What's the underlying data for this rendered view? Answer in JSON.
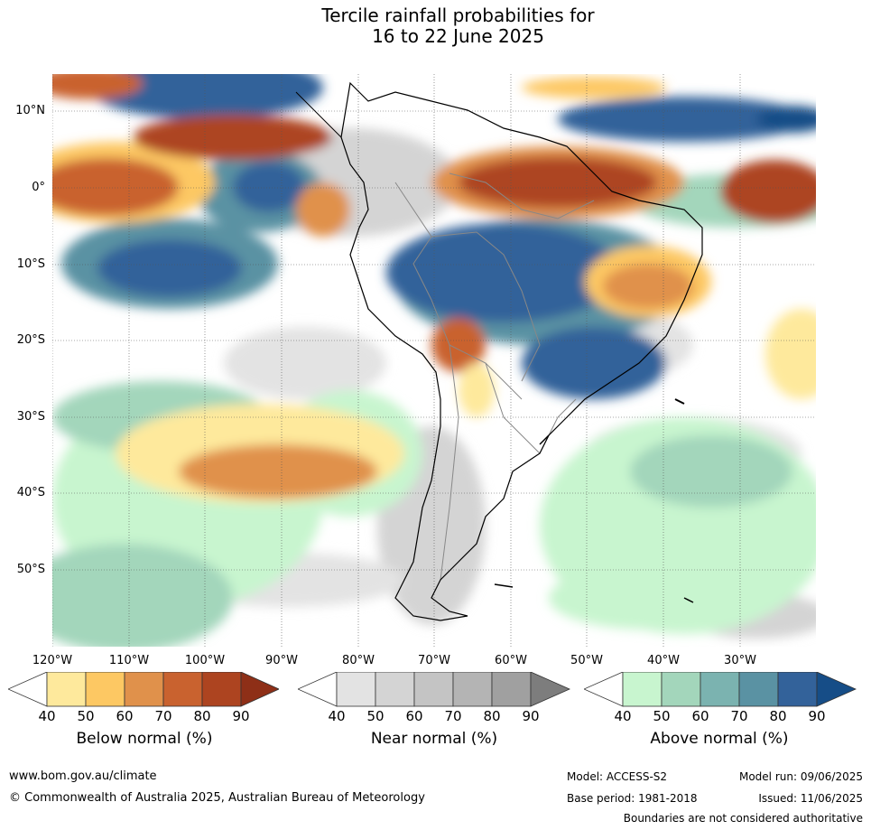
{
  "title": {
    "line1": "Tercile rainfall probabilities for",
    "line2": "16 to 22 June 2025"
  },
  "map": {
    "latitude_labels": [
      "10°N",
      "0°",
      "10°S",
      "20°S",
      "30°S",
      "40°S",
      "50°S"
    ],
    "longitude_labels": [
      "120°W",
      "110°W",
      "100°W",
      "90°W",
      "80°W",
      "70°W",
      "60°W",
      "50°W",
      "40°W",
      "30°W"
    ]
  },
  "colorbars": [
    {
      "title": "Below normal (%)",
      "ticks": [
        "40",
        "50",
        "60",
        "70",
        "80",
        "90"
      ],
      "colors": [
        "#ffffff",
        "#fee99c",
        "#fdc863",
        "#e0914b",
        "#c9622f",
        "#ad4420",
        "#8e2f17"
      ]
    },
    {
      "title": "Near normal (%)",
      "ticks": [
        "40",
        "50",
        "60",
        "70",
        "80",
        "90"
      ],
      "colors": [
        "#ffffff",
        "#e3e3e3",
        "#d4d4d4",
        "#c4c4c4",
        "#b4b4b4",
        "#a0a0a0",
        "#7d7d7d"
      ]
    },
    {
      "title": "Above normal (%)",
      "ticks": [
        "40",
        "50",
        "60",
        "70",
        "80",
        "90"
      ],
      "colors": [
        "#ffffff",
        "#c8f5cf",
        "#a3d6bb",
        "#7bb3b0",
        "#5a92a3",
        "#33629a",
        "#164d87"
      ]
    }
  ],
  "footer": {
    "website": "www.bom.gov.au/climate",
    "copyright": "© Commonwealth of Australia 2025, Australian Bureau of Meteorology",
    "model": "Model: ACCESS-S2",
    "base_period": "Base period: 1981-2018",
    "model_run": "Model run: 09/06/2025",
    "issued": "Issued: 11/06/2025",
    "disclaimer": "Boundaries are not considered authoritative"
  }
}
